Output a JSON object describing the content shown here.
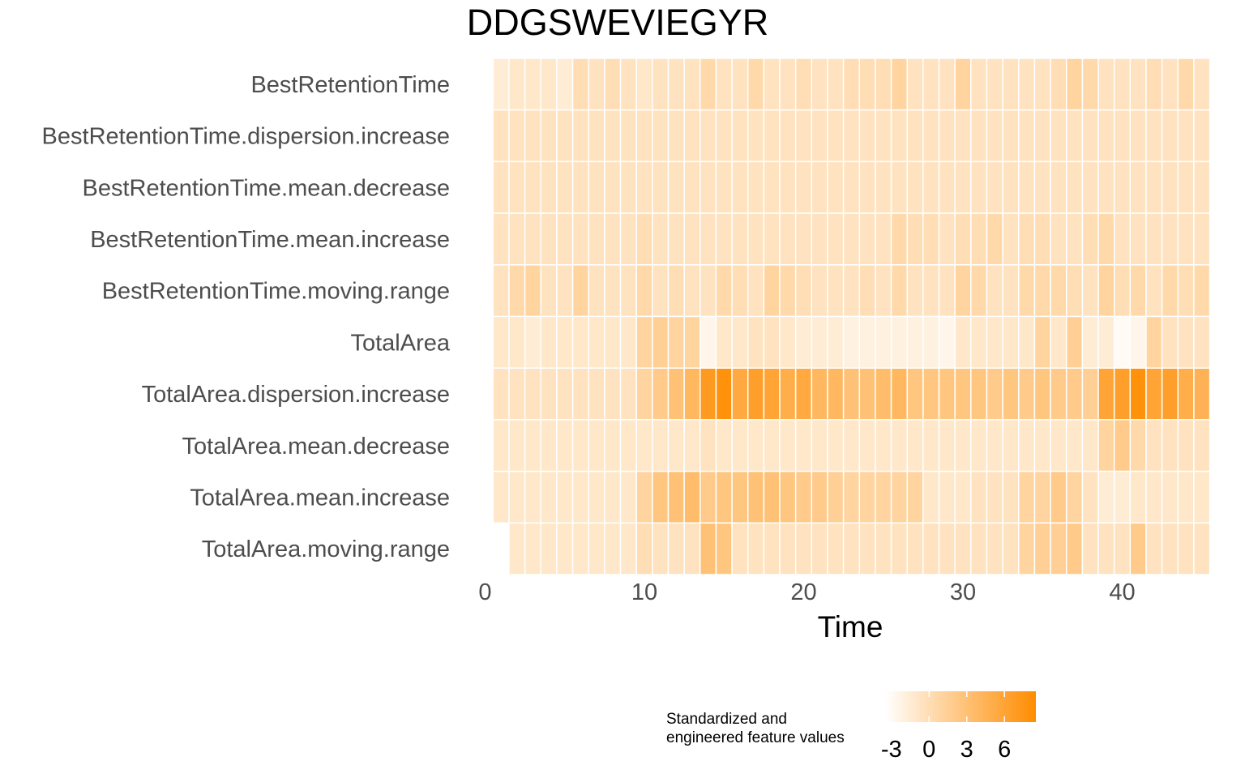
{
  "chart_data": {
    "type": "heatmap",
    "title": "DDGSWEVIEGYR",
    "xlabel": "Time",
    "ylabel": "",
    "xlim": [
      0,
      45
    ],
    "x_ticks": [
      0,
      10,
      20,
      30,
      40
    ],
    "x_tick_labels": [
      "0",
      "10",
      "20",
      "30",
      "40"
    ],
    "x": [
      1,
      2,
      3,
      4,
      5,
      6,
      7,
      8,
      9,
      10,
      11,
      12,
      13,
      14,
      15,
      16,
      17,
      18,
      19,
      20,
      21,
      22,
      23,
      24,
      25,
      26,
      27,
      28,
      29,
      30,
      31,
      32,
      33,
      34,
      35,
      36,
      37,
      38,
      39,
      40,
      41,
      42,
      43,
      44,
      45
    ],
    "rows": [
      "BestRetentionTime",
      "BestRetentionTime.dispersion.increase",
      "BestRetentionTime.mean.decrease",
      "BestRetentionTime.mean.increase",
      "BestRetentionTime.moving.range",
      "TotalArea",
      "TotalArea.dispersion.increase",
      "TotalArea.mean.decrease",
      "TotalArea.mean.increase",
      "TotalArea.moving.range"
    ],
    "values": [
      [
        -1.5,
        -1.0,
        -1.0,
        -1.0,
        -1.5,
        0.0,
        -0.5,
        0.0,
        -0.5,
        -1.0,
        -0.5,
        -0.5,
        -0.5,
        0.5,
        -0.5,
        -0.5,
        0.5,
        -0.5,
        -0.5,
        0.0,
        -0.5,
        -0.5,
        0.0,
        0.0,
        0.0,
        1.0,
        -0.5,
        -0.5,
        -0.5,
        1.0,
        -0.5,
        -0.5,
        -0.5,
        -0.5,
        -0.5,
        0.0,
        1.0,
        0.5,
        -0.5,
        -0.5,
        -0.5,
        0.0,
        -0.5,
        0.5,
        -0.5
      ],
      [
        -0.5,
        -0.5,
        -0.5,
        -0.5,
        -0.5,
        -0.5,
        -0.5,
        -0.5,
        -0.5,
        -0.5,
        -0.5,
        -0.5,
        -0.5,
        -0.5,
        -0.5,
        -0.5,
        -0.5,
        -0.5,
        -0.5,
        -0.5,
        -0.5,
        -0.5,
        -0.5,
        -0.5,
        -0.5,
        -0.5,
        -0.5,
        -0.5,
        -0.5,
        -0.5,
        -0.5,
        -0.5,
        -0.5,
        -0.5,
        -0.5,
        -0.5,
        -0.5,
        -0.5,
        -0.5,
        -0.5,
        -0.5,
        -0.5,
        -0.5,
        -0.5,
        -0.5
      ],
      [
        -0.5,
        -0.5,
        -0.5,
        -0.5,
        -0.5,
        -0.5,
        -0.5,
        -0.5,
        -0.5,
        -0.5,
        -0.5,
        -0.5,
        -0.5,
        -0.5,
        -0.5,
        -0.5,
        -0.5,
        -0.5,
        -0.5,
        -0.5,
        -0.5,
        -0.5,
        -0.5,
        -0.5,
        -0.5,
        -0.5,
        -0.5,
        -0.5,
        -0.5,
        -0.5,
        -0.5,
        -0.5,
        -0.5,
        -0.5,
        -0.5,
        -0.5,
        -0.5,
        -0.5,
        -0.5,
        -0.5,
        -0.5,
        -0.5,
        -0.5,
        -0.5,
        -0.5
      ],
      [
        -0.5,
        -0.5,
        -0.5,
        -0.5,
        -0.5,
        -0.5,
        -0.5,
        -0.5,
        -0.5,
        0.0,
        -0.5,
        -0.5,
        -0.5,
        -0.5,
        -0.5,
        -0.5,
        -0.5,
        -0.5,
        -0.5,
        -0.5,
        -0.5,
        -0.5,
        -0.5,
        -0.5,
        -0.5,
        0.5,
        0.0,
        0.0,
        -0.5,
        0.0,
        0.0,
        0.5,
        -0.5,
        0.0,
        0.0,
        -0.5,
        -0.5,
        0.0,
        0.5,
        -0.5,
        -0.5,
        -0.5,
        -0.5,
        -0.5,
        -0.5
      ],
      [
        -0.5,
        0.5,
        1.0,
        -0.5,
        -0.5,
        1.0,
        -0.5,
        -0.5,
        -0.5,
        0.5,
        -0.5,
        0.0,
        -0.5,
        -0.5,
        0.5,
        0.0,
        -0.5,
        1.0,
        0.5,
        0.0,
        -0.5,
        -0.5,
        -0.5,
        0.0,
        -0.5,
        0.5,
        -0.5,
        -0.5,
        -0.5,
        1.0,
        0.5,
        -0.5,
        -0.5,
        0.5,
        0.5,
        0.5,
        0.0,
        -0.5,
        1.0,
        0.0,
        0.5,
        -0.5,
        0.5,
        0.0,
        0.5
      ],
      [
        -1.0,
        -1.0,
        -1.5,
        -1.0,
        -1.0,
        -1.0,
        -1.0,
        -1.0,
        -1.0,
        1.0,
        1.5,
        1.0,
        1.0,
        -2.5,
        -1.0,
        -1.0,
        -0.5,
        -0.5,
        -1.0,
        -1.5,
        -1.5,
        -1.5,
        -2.0,
        -2.0,
        -2.0,
        -2.0,
        -2.0,
        -2.0,
        -2.5,
        -1.0,
        -1.0,
        -1.0,
        -1.0,
        -1.0,
        1.0,
        -1.0,
        1.5,
        -1.5,
        -1.5,
        -3.0,
        -2.5,
        1.0,
        -0.5,
        -0.5,
        -0.5
      ],
      [
        -0.5,
        -0.5,
        -0.5,
        -0.5,
        -0.5,
        -0.5,
        -0.5,
        -0.5,
        -0.5,
        1.0,
        2.0,
        3.0,
        4.0,
        7.0,
        8.0,
        5.5,
        6.5,
        6.0,
        5.0,
        5.5,
        4.0,
        4.0,
        3.0,
        3.0,
        3.5,
        4.0,
        2.5,
        2.5,
        2.5,
        2.5,
        2.5,
        2.0,
        2.5,
        2.0,
        2.5,
        2.0,
        2.0,
        1.5,
        6.0,
        6.5,
        8.0,
        6.0,
        6.5,
        5.0,
        4.5
      ],
      [
        -1.0,
        -1.0,
        -1.0,
        -1.0,
        -1.0,
        -1.0,
        -1.0,
        -1.0,
        -1.0,
        -1.0,
        -1.0,
        -1.0,
        -1.0,
        -0.5,
        -1.0,
        -1.0,
        -1.0,
        -1.0,
        -1.0,
        -1.0,
        -1.0,
        -1.0,
        -1.0,
        -1.0,
        -1.0,
        -1.0,
        -1.0,
        -1.0,
        -1.0,
        -1.0,
        -1.0,
        -1.0,
        -1.0,
        -1.0,
        -1.0,
        -1.0,
        -1.0,
        -1.0,
        1.0,
        2.0,
        0.5,
        -0.5,
        -0.5,
        -0.5,
        -0.5
      ],
      [
        -1.0,
        -1.0,
        -1.0,
        -1.0,
        -1.0,
        -1.0,
        -1.0,
        -1.0,
        -1.0,
        1.0,
        2.5,
        3.0,
        3.5,
        2.0,
        2.5,
        2.5,
        3.0,
        3.0,
        2.5,
        2.0,
        2.0,
        1.5,
        1.0,
        1.0,
        1.0,
        1.0,
        1.0,
        -1.0,
        -1.0,
        -1.0,
        -0.5,
        -0.5,
        -0.5,
        1.0,
        1.0,
        2.0,
        1.0,
        -0.5,
        -1.5,
        -1.5,
        -1.0,
        -1.0,
        -1.0,
        -1.0,
        -1.0
      ],
      [
        null,
        -1.0,
        -1.0,
        -1.0,
        -1.0,
        -1.0,
        -1.0,
        -1.0,
        -1.0,
        0.0,
        -0.5,
        -0.5,
        -0.5,
        3.0,
        2.5,
        -0.5,
        -0.5,
        -0.5,
        -0.5,
        -0.5,
        -0.5,
        -0.5,
        -0.5,
        -0.5,
        -0.5,
        -0.5,
        -0.5,
        -0.5,
        -0.5,
        -0.5,
        -0.5,
        -0.5,
        -0.5,
        1.0,
        1.5,
        1.5,
        2.0,
        -0.5,
        -0.5,
        -0.5,
        2.0,
        -0.5,
        -0.5,
        -0.5,
        -0.5
      ]
    ],
    "legend": {
      "title_lines": [
        "Standardized and",
        "engineered feature values"
      ],
      "ticks": [
        -3,
        0,
        3,
        6
      ],
      "tick_labels": [
        "-3",
        "0",
        "3",
        "6"
      ],
      "range": [
        -3.5,
        8.5
      ],
      "position": "bottom",
      "low_color": "#ffffff",
      "high_color": "#ff8c00"
    }
  }
}
